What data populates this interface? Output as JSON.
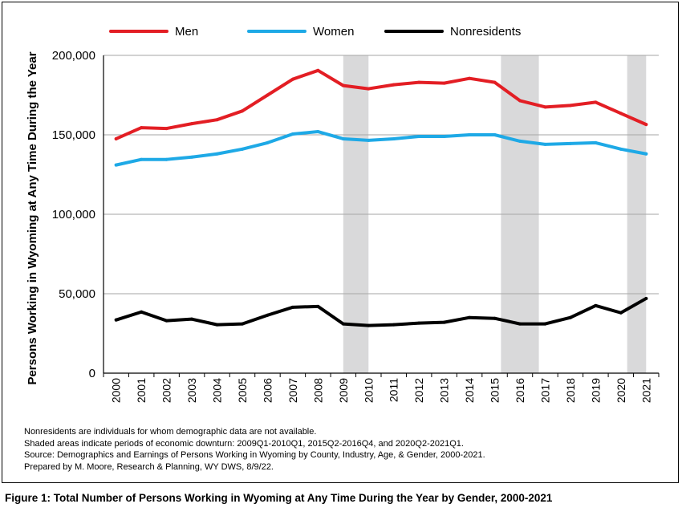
{
  "chart_data": {
    "type": "line",
    "x": [
      "2000",
      "2001",
      "2002",
      "2003",
      "2004",
      "2005",
      "2006",
      "2007",
      "2008",
      "2009",
      "2010",
      "2011",
      "2012",
      "2013",
      "2014",
      "2015",
      "2016",
      "2017",
      "2018",
      "2019",
      "2020",
      "2021"
    ],
    "ylabel": "Persons Working in Wyoming at Any Time During the Year",
    "ylim": [
      0,
      200000
    ],
    "y_ticks": [
      "0",
      "50,000",
      "100,000",
      "150,000",
      "200,000"
    ],
    "grid": "horizontal",
    "legend_position": "top",
    "series": [
      {
        "name": "Men",
        "color": "#e31e24",
        "values": [
          147500,
          154500,
          154000,
          157000,
          159500,
          165000,
          175000,
          185000,
          190500,
          181000,
          179000,
          181500,
          183000,
          182500,
          185500,
          183000,
          171500,
          167500,
          168500,
          170500,
          163500,
          156500
        ]
      },
      {
        "name": "Women",
        "color": "#1ea9e6",
        "values": [
          131000,
          134500,
          134500,
          136000,
          138000,
          141000,
          145000,
          150500,
          152000,
          147500,
          146500,
          147500,
          149000,
          149000,
          150000,
          150000,
          146000,
          144000,
          144500,
          145000,
          141000,
          138000
        ]
      },
      {
        "name": "Nonresidents",
        "color": "#000000",
        "values": [
          33500,
          38500,
          33000,
          34000,
          30500,
          31000,
          36500,
          41500,
          42000,
          31000,
          30000,
          30500,
          31500,
          32000,
          35000,
          34500,
          31000,
          31000,
          35000,
          42500,
          38000,
          47000
        ]
      }
    ],
    "shaded_periods": [
      {
        "label": "2009Q1-2010Q1",
        "start": 2009.0,
        "end": 2010.0
      },
      {
        "label": "2015Q2-2016Q4",
        "start": 2015.25,
        "end": 2016.75
      },
      {
        "label": "2020Q2-2021Q1",
        "start": 2020.25,
        "end": 2021.0
      }
    ],
    "shade_color": "#d9d9da"
  },
  "notes": [
    "Nonresidents are individuals for whom demographic data are not available.",
    "Shaded areas indicate periods of economic downturn: 2009Q1-2010Q1, 2015Q2-2016Q4, and 2020Q2-2021Q1.",
    "Source: Demographics and Earnings of Persons Working in Wyoming by County, Industry, Age, & Gender, 2000-2021.",
    "Prepared by M. Moore, Research & Planning, WY DWS, 8/9/22."
  ],
  "caption": "Figure 1: Total Number of Persons Working in Wyoming at Any Time During the Year by Gender, 2000-2021"
}
